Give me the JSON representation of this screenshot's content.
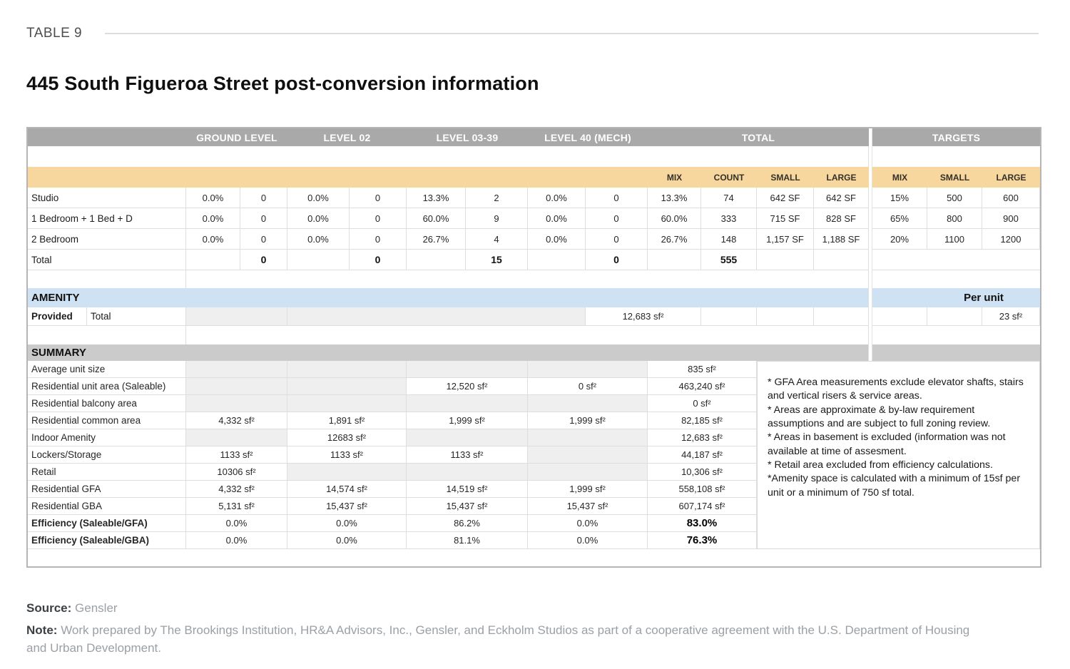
{
  "page": {
    "kicker": "TABLE 9",
    "title": "445 South Figueroa Street post-conversion information",
    "source_label": "Source:",
    "source_value": "Gensler",
    "note_label": "Note:",
    "note_value": "Work prepared by The Brookings Institution, HR&A Advisors, Inc., Gensler, and Eckholm Studios as part of a cooperative agreement with the U.S. Department of Housing and Urban Development."
  },
  "colors": {
    "header_gray": "#a9a9a9",
    "subheader_orange": "#f7d79d",
    "amenity_blue": "#cfe2f3",
    "summary_bar_gray": "#cbcbcb",
    "empty_cell_gray": "#efefef",
    "grid_border": "#dedede"
  },
  "unit_table": {
    "level_headers": [
      "GROUND LEVEL",
      "LEVEL 02",
      "LEVEL 03-39",
      "LEVEL 40 (MECH)",
      "TOTAL",
      "TARGETS"
    ],
    "total_sub_headers": [
      "MIX",
      "COUNT",
      "SMALL",
      "LARGE"
    ],
    "target_sub_headers": [
      "MIX",
      "SMALL",
      "LARGE"
    ],
    "rows": [
      {
        "label": "Studio",
        "values": [
          "0.0%",
          "0",
          "0.0%",
          "0",
          "13.3%",
          "2",
          "0.0%",
          "0",
          "13.3%",
          "74",
          "642 SF",
          "642 SF"
        ],
        "targets": [
          "15%",
          "500",
          "600"
        ]
      },
      {
        "label": "1 Bedroom + 1 Bed + D",
        "values": [
          "0.0%",
          "0",
          "0.0%",
          "0",
          "60.0%",
          "9",
          "0.0%",
          "0",
          "60.0%",
          "333",
          "715 SF",
          "828 SF"
        ],
        "targets": [
          "65%",
          "800",
          "900"
        ]
      },
      {
        "label": "2 Bedroom",
        "values": [
          "0.0%",
          "0",
          "0.0%",
          "0",
          "26.7%",
          "4",
          "0.0%",
          "0",
          "26.7%",
          "148",
          "1,157 SF",
          "1,188 SF"
        ],
        "targets": [
          "20%",
          "1100",
          "1200"
        ]
      }
    ],
    "total_row": {
      "label": "Total",
      "values": [
        "",
        "0",
        "",
        "0",
        "",
        "15",
        "",
        "0",
        "",
        "555",
        "",
        ""
      ]
    }
  },
  "amenity": {
    "header": "AMENITY",
    "per_unit_label": "Per unit",
    "provided_label": "Provided",
    "total_label": "Total",
    "total_value": "12,683 sf²",
    "per_unit_value": "23 sf²"
  },
  "summary": {
    "header": "SUMMARY",
    "rows": [
      {
        "label": "Average unit size",
        "bold": false,
        "cells": [
          "",
          "",
          "",
          "",
          "835 sf²"
        ],
        "gray": [
          true,
          true,
          true,
          true,
          false
        ],
        "total_bold": false
      },
      {
        "label": "Residential unit area (Saleable)",
        "bold": false,
        "cells": [
          "",
          "",
          "12,520 sf²",
          "0 sf²",
          "463,240 sf²"
        ],
        "gray": [
          true,
          true,
          false,
          false,
          false
        ],
        "total_bold": false
      },
      {
        "label": "Residential balcony area",
        "bold": false,
        "cells": [
          "",
          "",
          "",
          "",
          "0 sf²"
        ],
        "gray": [
          true,
          true,
          true,
          true,
          false
        ],
        "total_bold": false
      },
      {
        "label": "Residential common area",
        "bold": false,
        "cells": [
          "4,332 sf²",
          "1,891 sf²",
          "1,999 sf²",
          "1,999 sf²",
          "82,185 sf²"
        ],
        "gray": [
          false,
          false,
          false,
          false,
          false
        ],
        "total_bold": false
      },
      {
        "label": "Indoor Amenity",
        "bold": false,
        "cells": [
          "",
          "12683 sf²",
          "",
          "",
          "12,683 sf²"
        ],
        "gray": [
          true,
          false,
          true,
          true,
          false
        ],
        "total_bold": false
      },
      {
        "label": "Lockers/Storage",
        "bold": false,
        "cells": [
          "1133 sf²",
          "1133 sf²",
          "1133 sf²",
          "",
          "44,187 sf²"
        ],
        "gray": [
          false,
          false,
          false,
          true,
          false
        ],
        "total_bold": false
      },
      {
        "label": "Retail",
        "bold": false,
        "cells": [
          "10306 sf²",
          "",
          "",
          "",
          "10,306 sf²"
        ],
        "gray": [
          false,
          true,
          true,
          true,
          false
        ],
        "total_bold": false
      },
      {
        "label": "Residential GFA",
        "bold": false,
        "cells": [
          "4,332 sf²",
          "14,574 sf²",
          "14,519 sf²",
          "1,999 sf²",
          "558,108 sf²"
        ],
        "gray": [
          false,
          false,
          false,
          false,
          false
        ],
        "total_bold": false
      },
      {
        "label": "Residential GBA",
        "bold": false,
        "cells": [
          "5,131 sf²",
          "15,437 sf²",
          "15,437 sf²",
          "15,437 sf²",
          "607,174 sf²"
        ],
        "gray": [
          false,
          false,
          false,
          false,
          false
        ],
        "total_bold": false
      },
      {
        "label": "Efficiency (Saleable/GFA)",
        "bold": true,
        "cells": [
          "0.0%",
          "0.0%",
          "86.2%",
          "0.0%",
          "83.0%"
        ],
        "gray": [
          false,
          false,
          false,
          false,
          false
        ],
        "total_bold": true
      },
      {
        "label": "Efficiency (Saleable/GBA)",
        "bold": true,
        "cells": [
          "0.0%",
          "0.0%",
          "81.1%",
          "0.0%",
          "76.3%"
        ],
        "gray": [
          false,
          false,
          false,
          false,
          false
        ],
        "total_bold": true
      }
    ],
    "notes": [
      "* GFA Area measurements exclude elevator shafts, stairs and vertical risers & service areas.",
      "* Areas are approximate & by-law requirement assumptions and are subject to full zoning review.",
      "* Areas in basement is excluded (information was not available at time of assesment.",
      "* Retail area excluded from efficiency calculations.",
      "*Amenity space is calculated with a minimum of 15sf per unit or a minimum of 750 sf total."
    ]
  }
}
